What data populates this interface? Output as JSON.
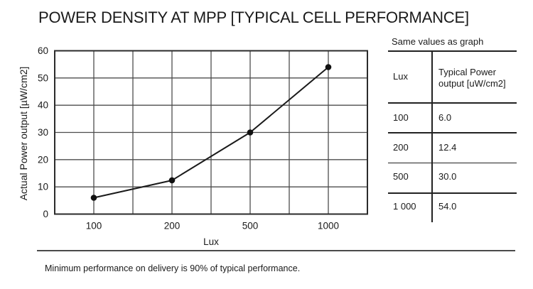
{
  "title": "POWER DENSITY AT MPP [TYPICAL CELL PERFORMANCE]",
  "chart_data": {
    "type": "line",
    "title": "POWER DENSITY AT MPP [TYPICAL CELL PERFORMANCE]",
    "categories": [
      "100",
      "200",
      "500",
      "1000"
    ],
    "values": [
      6.0,
      12.4,
      30.0,
      54.0
    ],
    "xlabel": "Lux",
    "ylabel": "Actual Power output [µW/cm2]",
    "ylim": [
      0,
      60
    ],
    "ytick_step": 10,
    "grid": true,
    "legend": false,
    "marker": "filled-circle",
    "colors": {
      "line": "#1a1a1a",
      "grid": "#4d4d4d",
      "border": "#2b2b2b"
    }
  },
  "side_table": {
    "caption": "Same values as graph",
    "col1_header": "Lux",
    "col2_header_line1": "Typical Power",
    "col2_header_line2": "output [uW/cm2]",
    "rows": [
      {
        "lux": "100",
        "power": "6.0"
      },
      {
        "lux": "200",
        "power": "12.4"
      },
      {
        "lux": "500",
        "power": "30.0"
      },
      {
        "lux": "1 000",
        "power": "54.0"
      }
    ]
  },
  "footer": {
    "note": "Minimum performance on delivery is 90% of typical performance."
  }
}
